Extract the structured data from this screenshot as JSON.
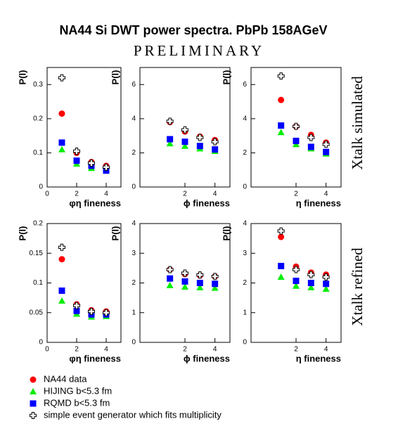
{
  "title": "NA44 Si DWT power spectra. PbPb 158AGeV",
  "subtitle": "PRELIMINARY",
  "row_labels": [
    "Xtalk simulated",
    "Xtalk refined"
  ],
  "chart_data": [
    {
      "type": "scatter",
      "x_label": "φη fineness",
      "y_label": "P(l)",
      "xlim": [
        0,
        5
      ],
      "ylim": [
        0,
        0.35
      ],
      "xticks": [
        0,
        2,
        4
      ],
      "yticks": [
        0,
        0.1,
        0.2,
        0.3
      ],
      "series": [
        {
          "name": "NA44 data",
          "color": "#ff0000",
          "marker": "circle",
          "x": [
            1,
            2,
            3,
            4
          ],
          "values": [
            0.215,
            0.1,
            0.073,
            0.062
          ]
        },
        {
          "name": "HIJING b<5.3 fm",
          "color": "#00ee00",
          "marker": "triangle",
          "x": [
            1,
            2,
            3,
            4
          ],
          "values": [
            0.11,
            0.068,
            0.055,
            0.052
          ]
        },
        {
          "name": "RQMD b<5.3 fm",
          "color": "#0000ff",
          "marker": "square",
          "x": [
            1,
            2,
            3,
            4
          ],
          "values": [
            0.13,
            0.077,
            0.062,
            0.048
          ]
        },
        {
          "name": "simple event generator which fits multiplicity",
          "color": "#000000",
          "marker": "cross",
          "x": [
            1,
            2,
            3,
            4
          ],
          "values": [
            0.32,
            0.105,
            0.07,
            0.058
          ]
        }
      ]
    },
    {
      "type": "scatter",
      "x_label": "ϕ fineness",
      "y_label": "P(l)",
      "xlim": [
        -1,
        5
      ],
      "ylim": [
        0,
        7
      ],
      "xticks": [
        2,
        4
      ],
      "yticks": [
        0,
        2,
        4,
        6
      ],
      "series": [
        {
          "name": "NA44 data",
          "color": "#ff0000",
          "marker": "circle",
          "x": [
            1,
            2,
            3,
            4
          ],
          "values": [
            3.8,
            3.25,
            2.95,
            2.75
          ]
        },
        {
          "name": "HIJING b<5.3 fm",
          "color": "#00ee00",
          "marker": "triangle",
          "x": [
            1,
            2,
            3,
            4
          ],
          "values": [
            2.55,
            2.4,
            2.25,
            2.1
          ]
        },
        {
          "name": "RQMD b<5.3 fm",
          "color": "#0000ff",
          "marker": "square",
          "x": [
            1,
            2,
            3,
            4
          ],
          "values": [
            2.8,
            2.65,
            2.4,
            2.2
          ]
        },
        {
          "name": "simple event generator which fits multiplicity",
          "color": "#000000",
          "marker": "cross",
          "x": [
            1,
            2,
            3,
            4
          ],
          "values": [
            3.85,
            3.35,
            2.9,
            2.65
          ]
        }
      ]
    },
    {
      "type": "scatter",
      "x_label": "η fineness",
      "y_label": "P(l)",
      "xlim": [
        -1,
        5
      ],
      "ylim": [
        0,
        7
      ],
      "xticks": [
        2,
        4
      ],
      "yticks": [
        0,
        2,
        4,
        6
      ],
      "series": [
        {
          "name": "NA44 data",
          "color": "#ff0000",
          "marker": "circle",
          "x": [
            1,
            2,
            3,
            4
          ],
          "values": [
            5.1,
            3.55,
            3.05,
            2.6
          ]
        },
        {
          "name": "HIJING b<5.3 fm",
          "color": "#00ee00",
          "marker": "triangle",
          "x": [
            1,
            2,
            3,
            4
          ],
          "values": [
            3.2,
            2.5,
            2.25,
            1.95
          ]
        },
        {
          "name": "RQMD b<5.3 fm",
          "color": "#0000ff",
          "marker": "square",
          "x": [
            1,
            2,
            3,
            4
          ],
          "values": [
            3.6,
            2.7,
            2.35,
            2.05
          ]
        },
        {
          "name": "simple event generator which fits multiplicity",
          "color": "#000000",
          "marker": "cross",
          "x": [
            1,
            2,
            3,
            4
          ],
          "values": [
            6.5,
            3.55,
            2.9,
            2.5
          ]
        }
      ]
    },
    {
      "type": "scatter",
      "x_label": "φη fineness",
      "y_label": "P(l)",
      "xlim": [
        0,
        5
      ],
      "ylim": [
        0,
        0.2
      ],
      "xticks": [
        0,
        2,
        4
      ],
      "yticks": [
        0,
        0.05,
        0.1,
        0.15,
        0.2
      ],
      "series": [
        {
          "name": "NA44 data",
          "color": "#ff0000",
          "marker": "circle",
          "x": [
            1,
            2,
            3,
            4
          ],
          "values": [
            0.14,
            0.064,
            0.054,
            0.052
          ]
        },
        {
          "name": "HIJING b<5.3 fm",
          "color": "#00ee00",
          "marker": "triangle",
          "x": [
            1,
            2,
            3,
            4
          ],
          "values": [
            0.07,
            0.048,
            0.043,
            0.044
          ]
        },
        {
          "name": "RQMD b<5.3 fm",
          "color": "#0000ff",
          "marker": "square",
          "x": [
            1,
            2,
            3,
            4
          ],
          "values": [
            0.087,
            0.053,
            0.047,
            0.047
          ]
        },
        {
          "name": "simple event generator which fits multiplicity",
          "color": "#000000",
          "marker": "cross",
          "x": [
            1,
            2,
            3,
            4
          ],
          "values": [
            0.16,
            0.062,
            0.052,
            0.05
          ]
        }
      ]
    },
    {
      "type": "scatter",
      "x_label": "ϕ fineness",
      "y_label": "P(l)",
      "xlim": [
        -1,
        5
      ],
      "ylim": [
        0,
        4
      ],
      "xticks": [
        2,
        4
      ],
      "yticks": [
        0,
        1,
        2,
        3,
        4
      ],
      "series": [
        {
          "name": "NA44 data",
          "color": "#ff0000",
          "marker": "circle",
          "x": [
            1,
            2,
            3,
            4
          ],
          "values": [
            2.45,
            2.3,
            2.25,
            2.22
          ]
        },
        {
          "name": "HIJING b<5.3 fm",
          "color": "#00ee00",
          "marker": "triangle",
          "x": [
            1,
            2,
            3,
            4
          ],
          "values": [
            1.92,
            1.87,
            1.85,
            1.83
          ]
        },
        {
          "name": "RQMD b<5.3 fm",
          "color": "#0000ff",
          "marker": "square",
          "x": [
            1,
            2,
            3,
            4
          ],
          "values": [
            2.15,
            2.05,
            2.0,
            1.97
          ]
        },
        {
          "name": "simple event generator which fits multiplicity",
          "color": "#000000",
          "marker": "cross",
          "x": [
            1,
            2,
            3,
            4
          ],
          "values": [
            2.45,
            2.33,
            2.27,
            2.22
          ]
        }
      ]
    },
    {
      "type": "scatter",
      "x_label": "η fineness",
      "y_label": "P(l)",
      "xlim": [
        -1,
        5
      ],
      "ylim": [
        0,
        4
      ],
      "xticks": [
        2,
        4
      ],
      "yticks": [
        0,
        1,
        2,
        3,
        4
      ],
      "series": [
        {
          "name": "NA44 data",
          "color": "#ff0000",
          "marker": "circle",
          "x": [
            1,
            2,
            3,
            4
          ],
          "values": [
            3.55,
            2.55,
            2.35,
            2.28
          ]
        },
        {
          "name": "HIJING b<5.3 fm",
          "color": "#00ee00",
          "marker": "triangle",
          "x": [
            1,
            2,
            3,
            4
          ],
          "values": [
            2.2,
            1.9,
            1.85,
            1.8
          ]
        },
        {
          "name": "RQMD b<5.3 fm",
          "color": "#0000ff",
          "marker": "square",
          "x": [
            1,
            2,
            3,
            4
          ],
          "values": [
            2.57,
            2.07,
            2.0,
            1.97
          ]
        },
        {
          "name": "simple event generator which fits multiplicity",
          "color": "#000000",
          "marker": "cross",
          "x": [
            1,
            2,
            3,
            4
          ],
          "values": [
            3.75,
            2.45,
            2.28,
            2.2
          ]
        }
      ]
    }
  ]
}
